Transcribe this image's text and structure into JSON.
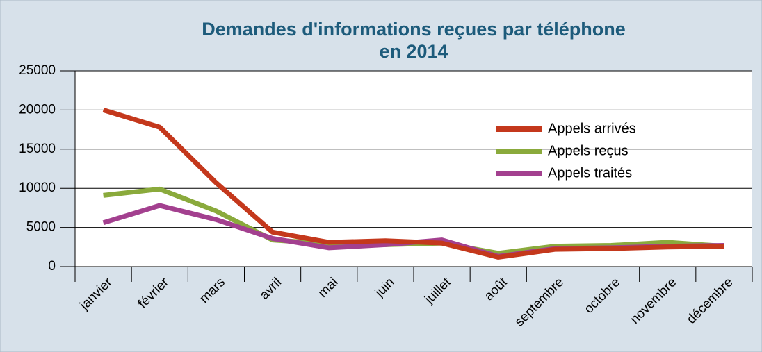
{
  "chart_data": {
    "type": "line",
    "title": "Demandes d'informations reçues par téléphone",
    "subtitle": "en 2014",
    "categories": [
      "janvier",
      "février",
      "mars",
      "avril",
      "mai",
      "juin",
      "juillet",
      "août",
      "septembre",
      "octobre",
      "novembre",
      "décembre"
    ],
    "series": [
      {
        "name": "Appels arrivés",
        "color": "#c4381c",
        "values": [
          20000,
          17800,
          10700,
          4400,
          3100,
          3300,
          3000,
          1200,
          2200,
          2300,
          2500,
          2600
        ]
      },
      {
        "name": "Appels reçus",
        "color": "#8aaa3c",
        "values": [
          9100,
          9900,
          7100,
          3400,
          2900,
          2800,
          3000,
          1700,
          2600,
          2700,
          3100,
          2600
        ]
      },
      {
        "name": "Appels traités",
        "color": "#a3408f",
        "values": [
          5600,
          7800,
          6000,
          3600,
          2400,
          2800,
          3400,
          1300,
          2300,
          2400,
          2600,
          2700
        ]
      }
    ],
    "ylim": [
      0,
      25000
    ],
    "yticks": [
      0,
      5000,
      10000,
      15000,
      20000,
      25000
    ],
    "grid": true
  }
}
